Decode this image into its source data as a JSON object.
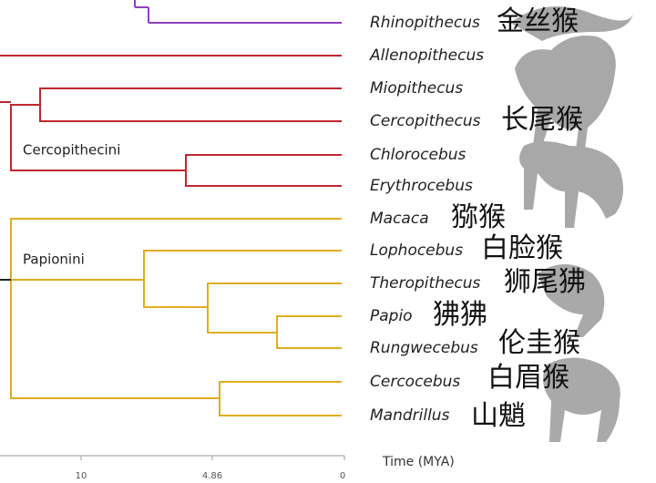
{
  "tree": {
    "tips": [
      {
        "genus": "Rhinopithecus",
        "common_name": "金丝猴"
      },
      {
        "genus": "Allenopithecus"
      },
      {
        "genus": "Miopithecus"
      },
      {
        "genus": "Cercopithecus",
        "common_name": "长尾猴"
      },
      {
        "genus": "Chlorocebus"
      },
      {
        "genus": "Erythrocebus"
      },
      {
        "genus": "Macaca",
        "common_name": "猕猴"
      },
      {
        "genus": "Lophocebus",
        "common_name": "白脸猴"
      },
      {
        "genus": "Theropithecus",
        "common_name": "狮尾狒"
      },
      {
        "genus": "Papio",
        "common_name": "狒狒"
      },
      {
        "genus": "Rungwecebus",
        "common_name": "伦圭猴"
      },
      {
        "genus": "Cercocebus",
        "common_name": "白眉猴"
      },
      {
        "genus": "Mandrillus",
        "common_name": "山魈"
      }
    ],
    "clades": [
      "Cercopithecini",
      "Papionini"
    ],
    "axis": {
      "title": "Time (MYA)",
      "ticks": [
        10,
        4.86,
        0
      ]
    }
  }
}
